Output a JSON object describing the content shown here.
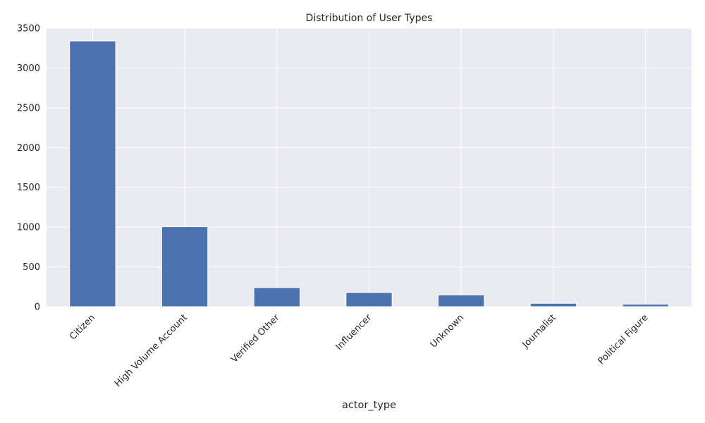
{
  "chart_data": {
    "type": "bar",
    "title": "Distribution of User Types",
    "xlabel": "actor_type",
    "ylabel": "",
    "categories": [
      "Citizen",
      "High Volume Account",
      "Verified Other",
      "Influencer",
      "Unknown",
      "Journalist",
      "Political Figure"
    ],
    "values": [
      3340,
      1005,
      240,
      178,
      148,
      42,
      32
    ],
    "ylim": [
      0,
      3500
    ],
    "yticks": [
      0,
      500,
      1000,
      1500,
      2000,
      2500,
      3000,
      3500
    ],
    "grid": true,
    "legend": "none",
    "bar_color": "#4c72b0",
    "background_color": "#eaeaf2",
    "grid_color": "#ffffff"
  }
}
